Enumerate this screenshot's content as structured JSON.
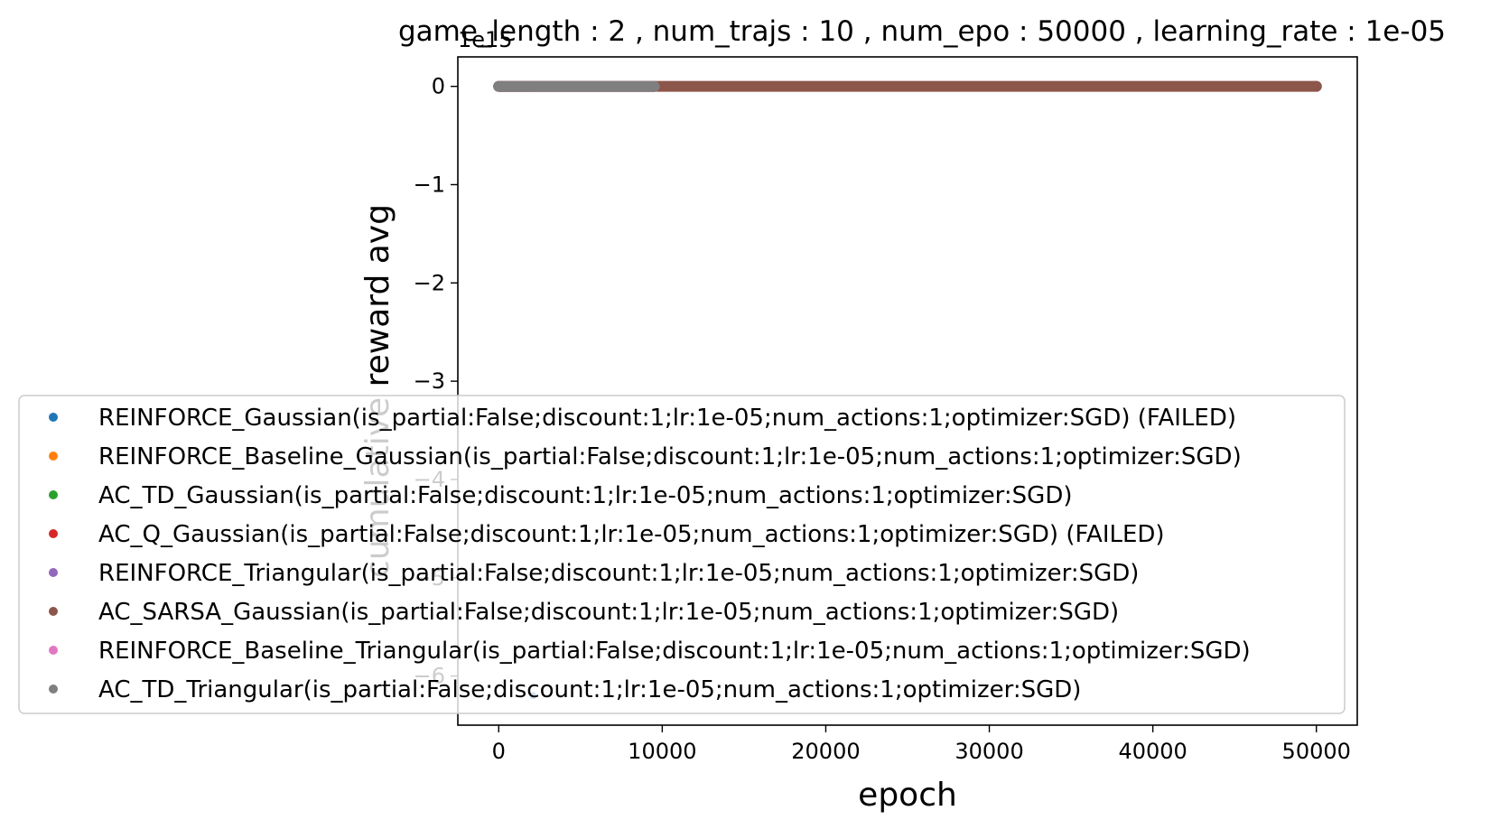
{
  "chart_data": {
    "type": "scatter",
    "title": "game_length : 2 , num_trajs : 10 , num_epo : 50000 , learning_rate : 1e-05",
    "xlabel": "epoch",
    "ylabel": "cumulative reward avg",
    "offset_text": "1e15",
    "xlim": [
      -2500,
      52500
    ],
    "ylim": [
      -6.5,
      0.3
    ],
    "xticks": [
      0,
      10000,
      20000,
      30000,
      40000,
      50000
    ],
    "xtick_labels": [
      "0",
      "10000",
      "20000",
      "30000",
      "40000",
      "50000"
    ],
    "yticks": [
      0,
      -1,
      -2,
      -3,
      -4,
      -5,
      -6
    ],
    "ytick_labels": [
      "0",
      "−1",
      "−2",
      "−3",
      "−4",
      "−5",
      "−6"
    ],
    "grid": false,
    "legend_position": "lower-center-left",
    "series": [
      {
        "name": "REINFORCE_Gaussian(is_partial:False;discount:1;lr:1e-05;num_actions:1;optimizer:SGD) (FAILED)",
        "color": "#1f77b4",
        "x_range": [
          0,
          2100
        ],
        "y": 0,
        "outlier": {
          "x": 2100,
          "y": -6.2
        }
      },
      {
        "name": "REINFORCE_Baseline_Gaussian(is_partial:False;discount:1;lr:1e-05;num_actions:1;optimizer:SGD)",
        "color": "#ff7f0e",
        "x_range": [
          0,
          9500
        ],
        "y": 0
      },
      {
        "name": "AC_TD_Gaussian(is_partial:False;discount:1;lr:1e-05;num_actions:1;optimizer:SGD)",
        "color": "#2ca02c",
        "x_range": [
          0,
          9500
        ],
        "y": 0
      },
      {
        "name": "AC_Q_Gaussian(is_partial:False;discount:1;lr:1e-05;num_actions:1;optimizer:SGD) (FAILED)",
        "color": "#d62728",
        "x_range": [
          0,
          9500
        ],
        "y": 0
      },
      {
        "name": "REINFORCE_Triangular(is_partial:False;discount:1;lr:1e-05;num_actions:1;optimizer:SGD)",
        "color": "#9467bd",
        "x_range": [
          0,
          9500
        ],
        "y": 0
      },
      {
        "name": "AC_SARSA_Gaussian(is_partial:False;discount:1;lr:1e-05;num_actions:1;optimizer:SGD)",
        "color": "#8c564b",
        "x_range": [
          0,
          50000
        ],
        "y": 0
      },
      {
        "name": "REINFORCE_Baseline_Triangular(is_partial:False;discount:1;lr:1e-05;num_actions:1;optimizer:SGD)",
        "color": "#e377c2",
        "x_range": [
          0,
          9500
        ],
        "y": 0
      },
      {
        "name": "AC_TD_Triangular(is_partial:False;discount:1;lr:1e-05;num_actions:1;optimizer:SGD)",
        "color": "#7f7f7f",
        "x_range": [
          0,
          9500
        ],
        "y": 0
      }
    ]
  }
}
